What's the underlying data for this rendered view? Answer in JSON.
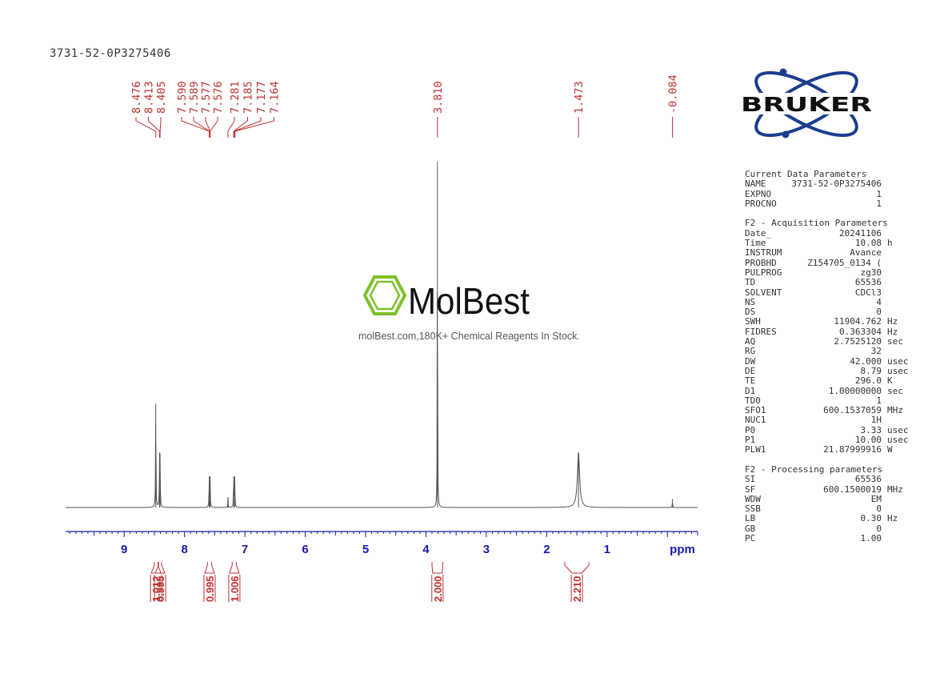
{
  "sample_id": "3731-52-0P3275406",
  "logo_text": "BRUKER",
  "watermark": {
    "brand": "MolBest",
    "tagline": "molBest.com,180K+ Chemical Reagents In Stock."
  },
  "colors": {
    "spectrum": "#555555",
    "peak_labels": "#c03030",
    "axis": "#1a1aaa",
    "logo_blue": "#1c3d8f",
    "watermark_green": "#7cc22a"
  },
  "chart_data": {
    "type": "line",
    "title": "",
    "xlabel": "ppm",
    "xlim": [
      9.97,
      -0.5
    ],
    "x_reversed": true,
    "x_ticks": [
      "9",
      "8",
      "7",
      "6",
      "5",
      "4",
      "3",
      "2",
      "1"
    ],
    "x_tick_values": [
      9,
      8,
      7,
      6,
      5,
      4,
      3,
      2,
      1
    ],
    "axis_unit_label": "ppm",
    "peak_labels": [
      "8.476",
      "8.413",
      "8.405",
      "7.590",
      "7.589",
      "7.577",
      "7.576",
      "7.281",
      "7.185",
      "7.177",
      "7.164",
      "3.810",
      "1.473",
      "-0.084"
    ],
    "peak_label_values": [
      8.476,
      8.413,
      8.405,
      7.59,
      7.589,
      7.577,
      7.576,
      7.281,
      7.185,
      7.177,
      7.164,
      3.81,
      1.473,
      -0.084
    ],
    "peaks": [
      {
        "ppm": 8.476,
        "intensity": 0.3,
        "width": 0.004
      },
      {
        "ppm": 8.413,
        "intensity": 0.13,
        "width": 0.004
      },
      {
        "ppm": 8.405,
        "intensity": 0.13,
        "width": 0.004
      },
      {
        "ppm": 7.59,
        "intensity": 0.09,
        "width": 0.004
      },
      {
        "ppm": 7.577,
        "intensity": 0.09,
        "width": 0.004
      },
      {
        "ppm": 7.281,
        "intensity": 0.03,
        "width": 0.003
      },
      {
        "ppm": 7.185,
        "intensity": 0.09,
        "width": 0.004
      },
      {
        "ppm": 7.168,
        "intensity": 0.09,
        "width": 0.004
      },
      {
        "ppm": 3.81,
        "intensity": 1.0,
        "width": 0.003
      },
      {
        "ppm": 1.473,
        "intensity": 0.16,
        "width": 0.022
      },
      {
        "ppm": -0.084,
        "intensity": 0.025,
        "width": 0.003
      }
    ],
    "integrals": [
      {
        "label": "1.012",
        "from": 8.5,
        "to": 8.44
      },
      {
        "label": "0.995",
        "from": 8.43,
        "to": 8.38
      },
      {
        "label": "0.995",
        "from": 7.62,
        "to": 7.55
      },
      {
        "label": "1.006",
        "from": 7.21,
        "to": 7.14
      },
      {
        "label": "2.000",
        "from": 3.9,
        "to": 3.72
      },
      {
        "label": "2.210",
        "from": 1.7,
        "to": 1.3
      }
    ]
  },
  "parameters": [
    {
      "title": "Current Data Parameters",
      "rows": [
        {
          "k": "NAME",
          "v": "3731-52-0P3275406",
          "u": ""
        },
        {
          "k": "EXPNO",
          "v": "1",
          "u": ""
        },
        {
          "k": "PROCNO",
          "v": "1",
          "u": ""
        }
      ]
    },
    {
      "title": "F2 - Acquisition Parameters",
      "rows": [
        {
          "k": "Date_",
          "v": "20241106",
          "u": ""
        },
        {
          "k": "Time",
          "v": "10.08",
          "u": "h"
        },
        {
          "k": "INSTRUM",
          "v": "Avance",
          "u": ""
        },
        {
          "k": "PROBHD",
          "v": "Z154705_0134 (",
          "u": ""
        },
        {
          "k": "PULPROG",
          "v": "zg30",
          "u": ""
        },
        {
          "k": "TD",
          "v": "65536",
          "u": ""
        },
        {
          "k": "SOLVENT",
          "v": "CDCl3",
          "u": ""
        },
        {
          "k": "NS",
          "v": "4",
          "u": ""
        },
        {
          "k": "DS",
          "v": "0",
          "u": ""
        },
        {
          "k": "SWH",
          "v": "11904.762",
          "u": "Hz"
        },
        {
          "k": "FIDRES",
          "v": "0.363304",
          "u": "Hz"
        },
        {
          "k": "AQ",
          "v": "2.7525120",
          "u": "sec"
        },
        {
          "k": "RG",
          "v": "32",
          "u": ""
        },
        {
          "k": "DW",
          "v": "42.000",
          "u": "usec"
        },
        {
          "k": "DE",
          "v": "8.79",
          "u": "usec"
        },
        {
          "k": "TE",
          "v": "296.0",
          "u": "K"
        },
        {
          "k": "D1",
          "v": "1.00000000",
          "u": "sec"
        },
        {
          "k": "TD0",
          "v": "1",
          "u": ""
        },
        {
          "k": "SFO1",
          "v": "600.1537059",
          "u": "MHz"
        },
        {
          "k": "NUC1",
          "v": "1H",
          "u": ""
        },
        {
          "k": "P0",
          "v": "3.33",
          "u": "usec"
        },
        {
          "k": "P1",
          "v": "10.00",
          "u": "usec"
        },
        {
          "k": "PLW1",
          "v": "21.87999916",
          "u": "W"
        }
      ]
    },
    {
      "title": "F2 - Processing parameters",
      "rows": [
        {
          "k": "SI",
          "v": "65536",
          "u": ""
        },
        {
          "k": "SF",
          "v": "600.1500019",
          "u": "MHz"
        },
        {
          "k": "WDW",
          "v": "EM",
          "u": ""
        },
        {
          "k": "SSB",
          "v": "0",
          "u": ""
        },
        {
          "k": "LB",
          "v": "0.30",
          "u": "Hz"
        },
        {
          "k": "GB",
          "v": "0",
          "u": ""
        },
        {
          "k": "PC",
          "v": "1.00",
          "u": ""
        }
      ]
    }
  ]
}
